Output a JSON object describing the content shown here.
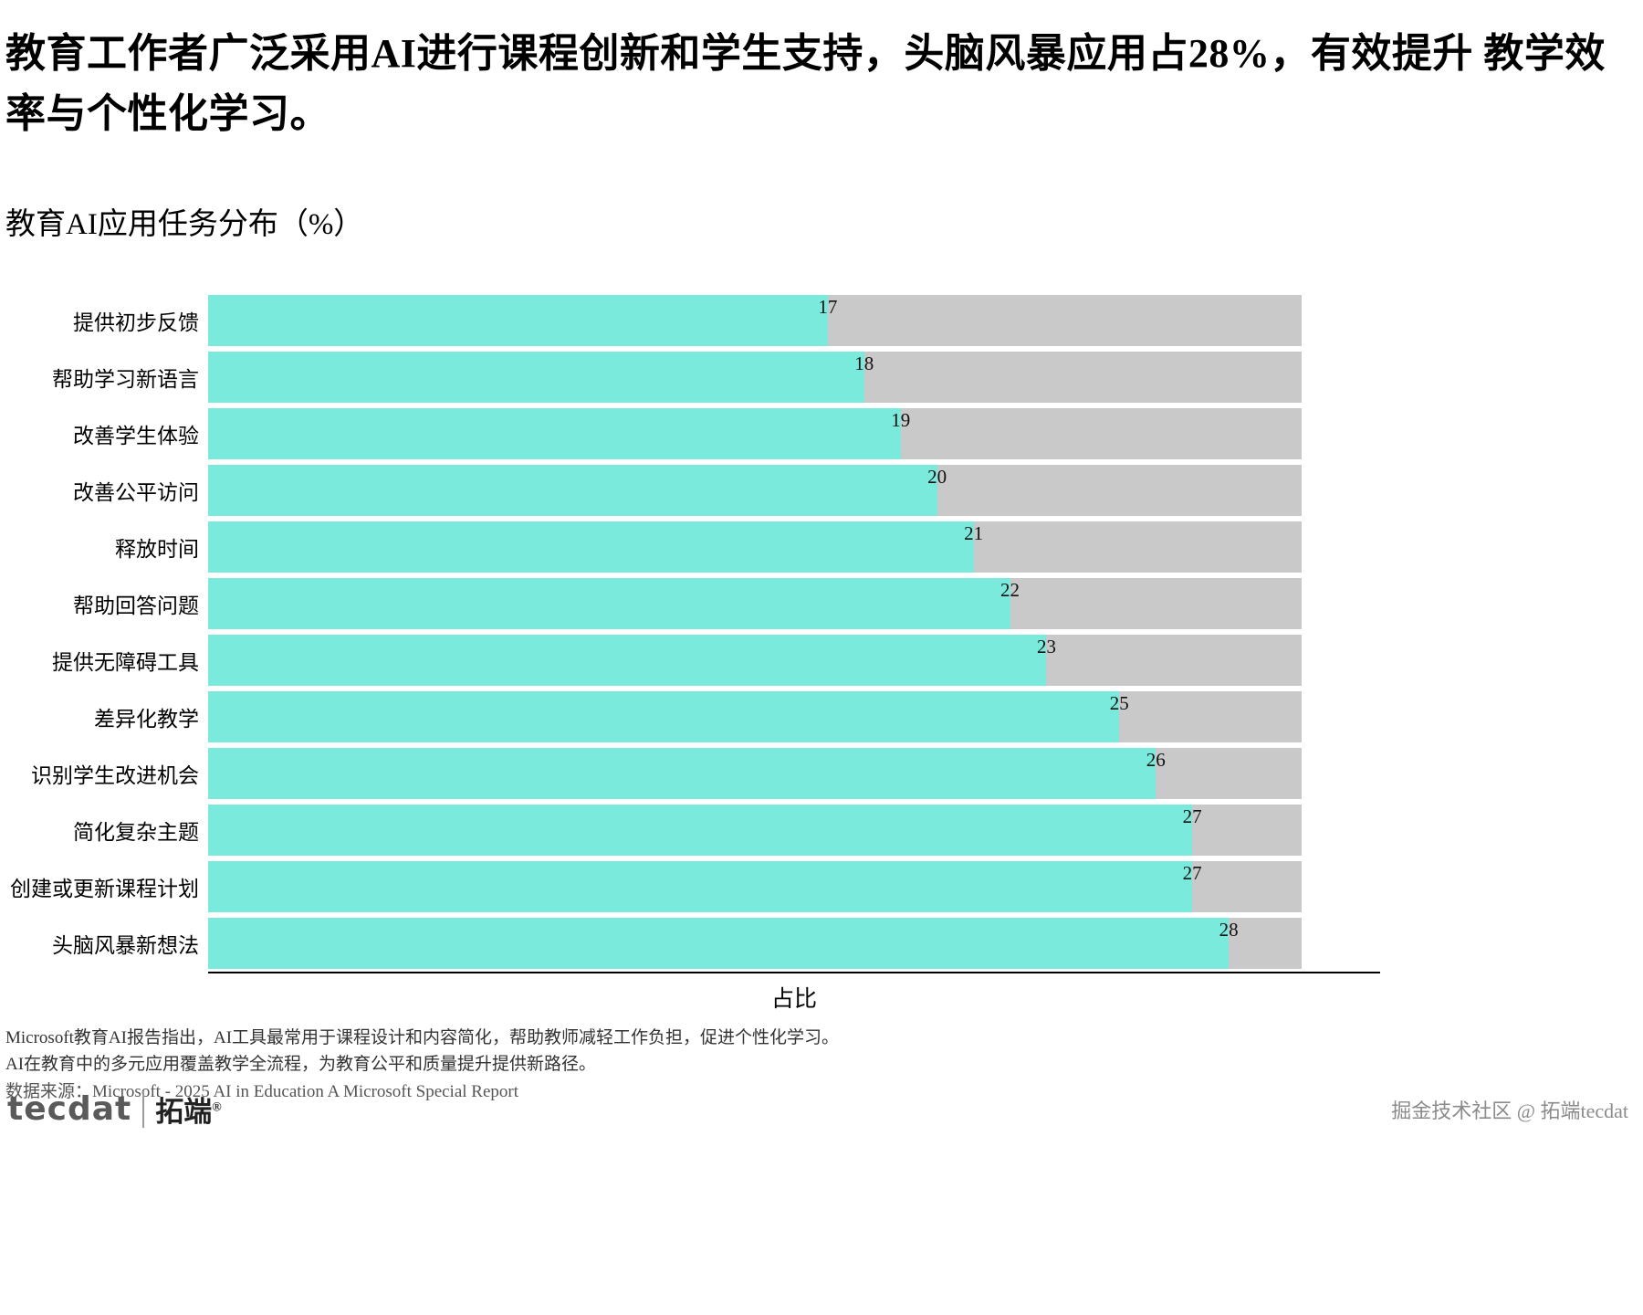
{
  "title": "教育工作者广泛采用AI进行课程创新和学生支持，头脑风暴应用占28%，有效提升 教学效率与个性化学习。",
  "subtitle": "教育AI应用任务分布（%）",
  "chart_data": {
    "type": "bar",
    "orientation": "horizontal",
    "title": "教育AI应用任务分布（%）",
    "categories": [
      "提供初步反馈",
      "帮助学习新语言",
      "改善学生体验",
      "改善公平访问",
      "释放时间",
      "帮助回答问题",
      "提供无障碍工具",
      "差异化教学",
      "识别学生改进机会",
      "简化复杂主题",
      "创建或更新课程计划",
      "头脑风暴新想法"
    ],
    "values": [
      17,
      18,
      19,
      20,
      21,
      22,
      23,
      25,
      26,
      27,
      27,
      28
    ],
    "xlabel": "占比",
    "ylabel": "",
    "xlim": [
      0,
      30
    ],
    "grid": false,
    "legend": false,
    "value_labels": true,
    "bar_color": "#7AEADC",
    "track_color": "#C9C9C9"
  },
  "footnotes": [
    "Microsoft教育AI报告指出，AI工具最常用于课程设计和内容简化，帮助教师减轻工作负担，促进个性化学习。",
    "AI在教育中的多元应用覆盖教学全流程，为教育公平和质量提升提供新路径。"
  ],
  "source": "数据来源：Microsoft - 2025 AI in Education A Microsoft Special Report",
  "logo": {
    "brand_en": "tecdat",
    "brand_cn": "拓端",
    "reg": "®"
  },
  "watermark": "掘金技术社区 @ 拓端tecdat"
}
